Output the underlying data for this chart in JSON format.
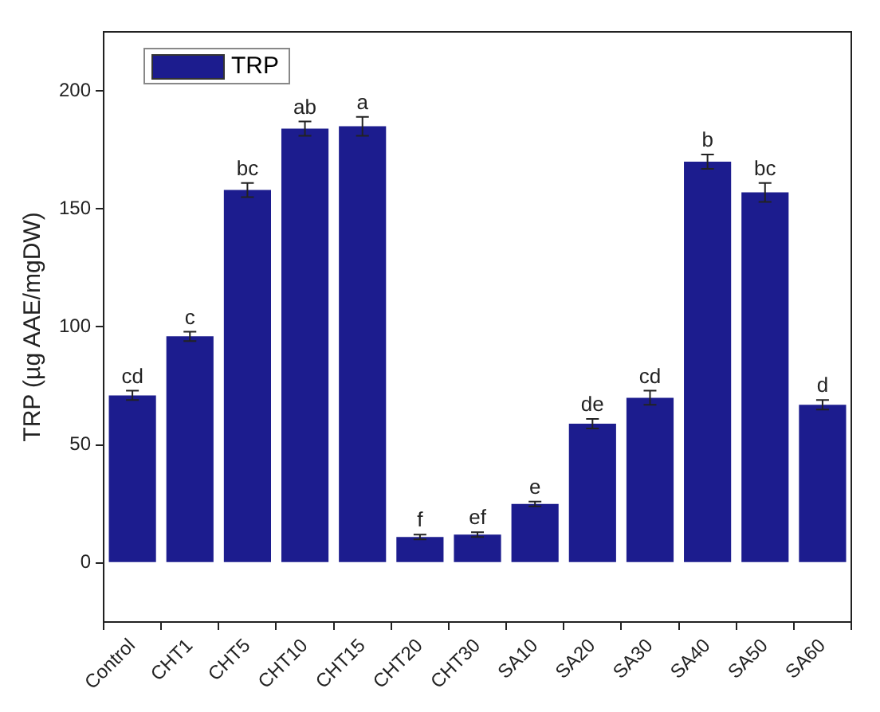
{
  "chart_data": {
    "type": "bar",
    "ylabel": "TRP (µg AAE/mgDW)",
    "categories": [
      "Control",
      "CHT1",
      "CHT5",
      "CHT10",
      "CHT15",
      "CHT20",
      "CHT30",
      "SA10",
      "SA20",
      "SA30",
      "SA40",
      "SA50",
      "SA60"
    ],
    "series": [
      {
        "name": "TRP",
        "color": "#1c1c8e",
        "values": [
          71,
          96,
          158,
          184,
          185,
          11,
          12,
          25,
          59,
          70,
          170,
          157,
          67
        ],
        "errors": [
          2,
          2,
          3,
          3,
          4,
          1,
          1,
          1,
          2,
          3,
          3,
          4,
          2
        ]
      }
    ],
    "ylim": [
      -25,
      225
    ],
    "yticks": [
      0,
      50,
      100,
      150,
      200
    ],
    "grid": false,
    "legend": "top left",
    "annotations": [
      {
        "text": "cd",
        "x": "Control",
        "y": 73
      },
      {
        "text": "c",
        "x": "CHT1",
        "y": 98
      },
      {
        "text": "bc",
        "x": "CHT5",
        "y": 161
      },
      {
        "text": "ab",
        "x": "CHT10",
        "y": 187
      },
      {
        "text": "a",
        "x": "CHT15",
        "y": 189
      },
      {
        "text": "f",
        "x": "CHT20",
        "y": 12
      },
      {
        "text": "ef",
        "x": "CHT30",
        "y": 13
      },
      {
        "text": "e",
        "x": "SA10",
        "y": 26
      },
      {
        "text": "de",
        "x": "SA20",
        "y": 61
      },
      {
        "text": "cd",
        "x": "SA30",
        "y": 73
      },
      {
        "text": "b",
        "x": "SA40",
        "y": 173
      },
      {
        "text": "bc",
        "x": "SA50",
        "y": 161
      },
      {
        "text": "d",
        "x": "SA60",
        "y": 69
      }
    ]
  }
}
